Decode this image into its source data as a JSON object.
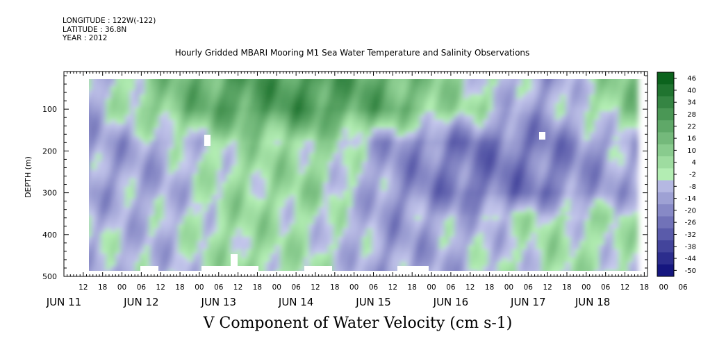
{
  "header": {
    "longitude": "LONGITUDE : 122W(-122)",
    "latitude": "LATITUDE : 36.8N",
    "year": "YEAR : 2012"
  },
  "chart_data": {
    "type": "heatmap",
    "title": "Hourly Gridded MBARI Mooring M1 Sea Water Temperature and Salinity Observations",
    "xlabel": "",
    "ylabel": "DEPTH (m)",
    "variable_label": "V Component of Water Velocity (cm s-1)",
    "x_hours_since_jun11_00": [
      10,
      184
    ],
    "xlim_hours_since_jun11_00": [
      6,
      187
    ],
    "ylim": [
      500,
      10
    ],
    "y_ticks": [
      100,
      200,
      300,
      400,
      500
    ],
    "x_tick_labels": [
      "12",
      "18",
      "00",
      "06",
      "12",
      "18",
      "00",
      "06",
      "12",
      "18",
      "00",
      "06",
      "12",
      "18",
      "00",
      "06",
      "12",
      "18",
      "00",
      "06",
      "12",
      "18",
      "00",
      "06",
      "12",
      "18",
      "00",
      "06",
      "12",
      "18",
      "00",
      "06"
    ],
    "date_labels": [
      "JUN 11",
      "JUN 12",
      "JUN 13",
      "JUN 14",
      "JUN 15",
      "JUN 16",
      "JUN 17",
      "JUN 18"
    ],
    "colorbar": {
      "labels": [
        "46",
        "40",
        "34",
        "28",
        "22",
        "16",
        "10",
        "4",
        "-2",
        "-8",
        "-14",
        "-20",
        "-26",
        "-32",
        "-38",
        "-44",
        "-50"
      ],
      "range": [
        -50,
        52
      ],
      "colors": {
        "neg_dark": "#0a0a78",
        "neg_light": "#c8cbee",
        "pos_light": "#b6f0b6",
        "pos_dark": "#005a14"
      }
    },
    "field_bands_cm_s": {
      "near_surface_dates": [
        "JUN 11",
        "JUN 12",
        "JUN 13",
        "JUN 14",
        "JUN 15",
        "JUN 16",
        "JUN 17",
        "JUN 18"
      ],
      "near_surface_0_100m": [
        -10,
        14,
        28,
        30,
        22,
        4,
        -12,
        14
      ],
      "mid_100_300m": [
        -12,
        -8,
        6,
        8,
        -14,
        -22,
        -20,
        -8
      ],
      "deep_300_490m": [
        -4,
        -6,
        8,
        2,
        -12,
        -6,
        4,
        2
      ]
    }
  }
}
